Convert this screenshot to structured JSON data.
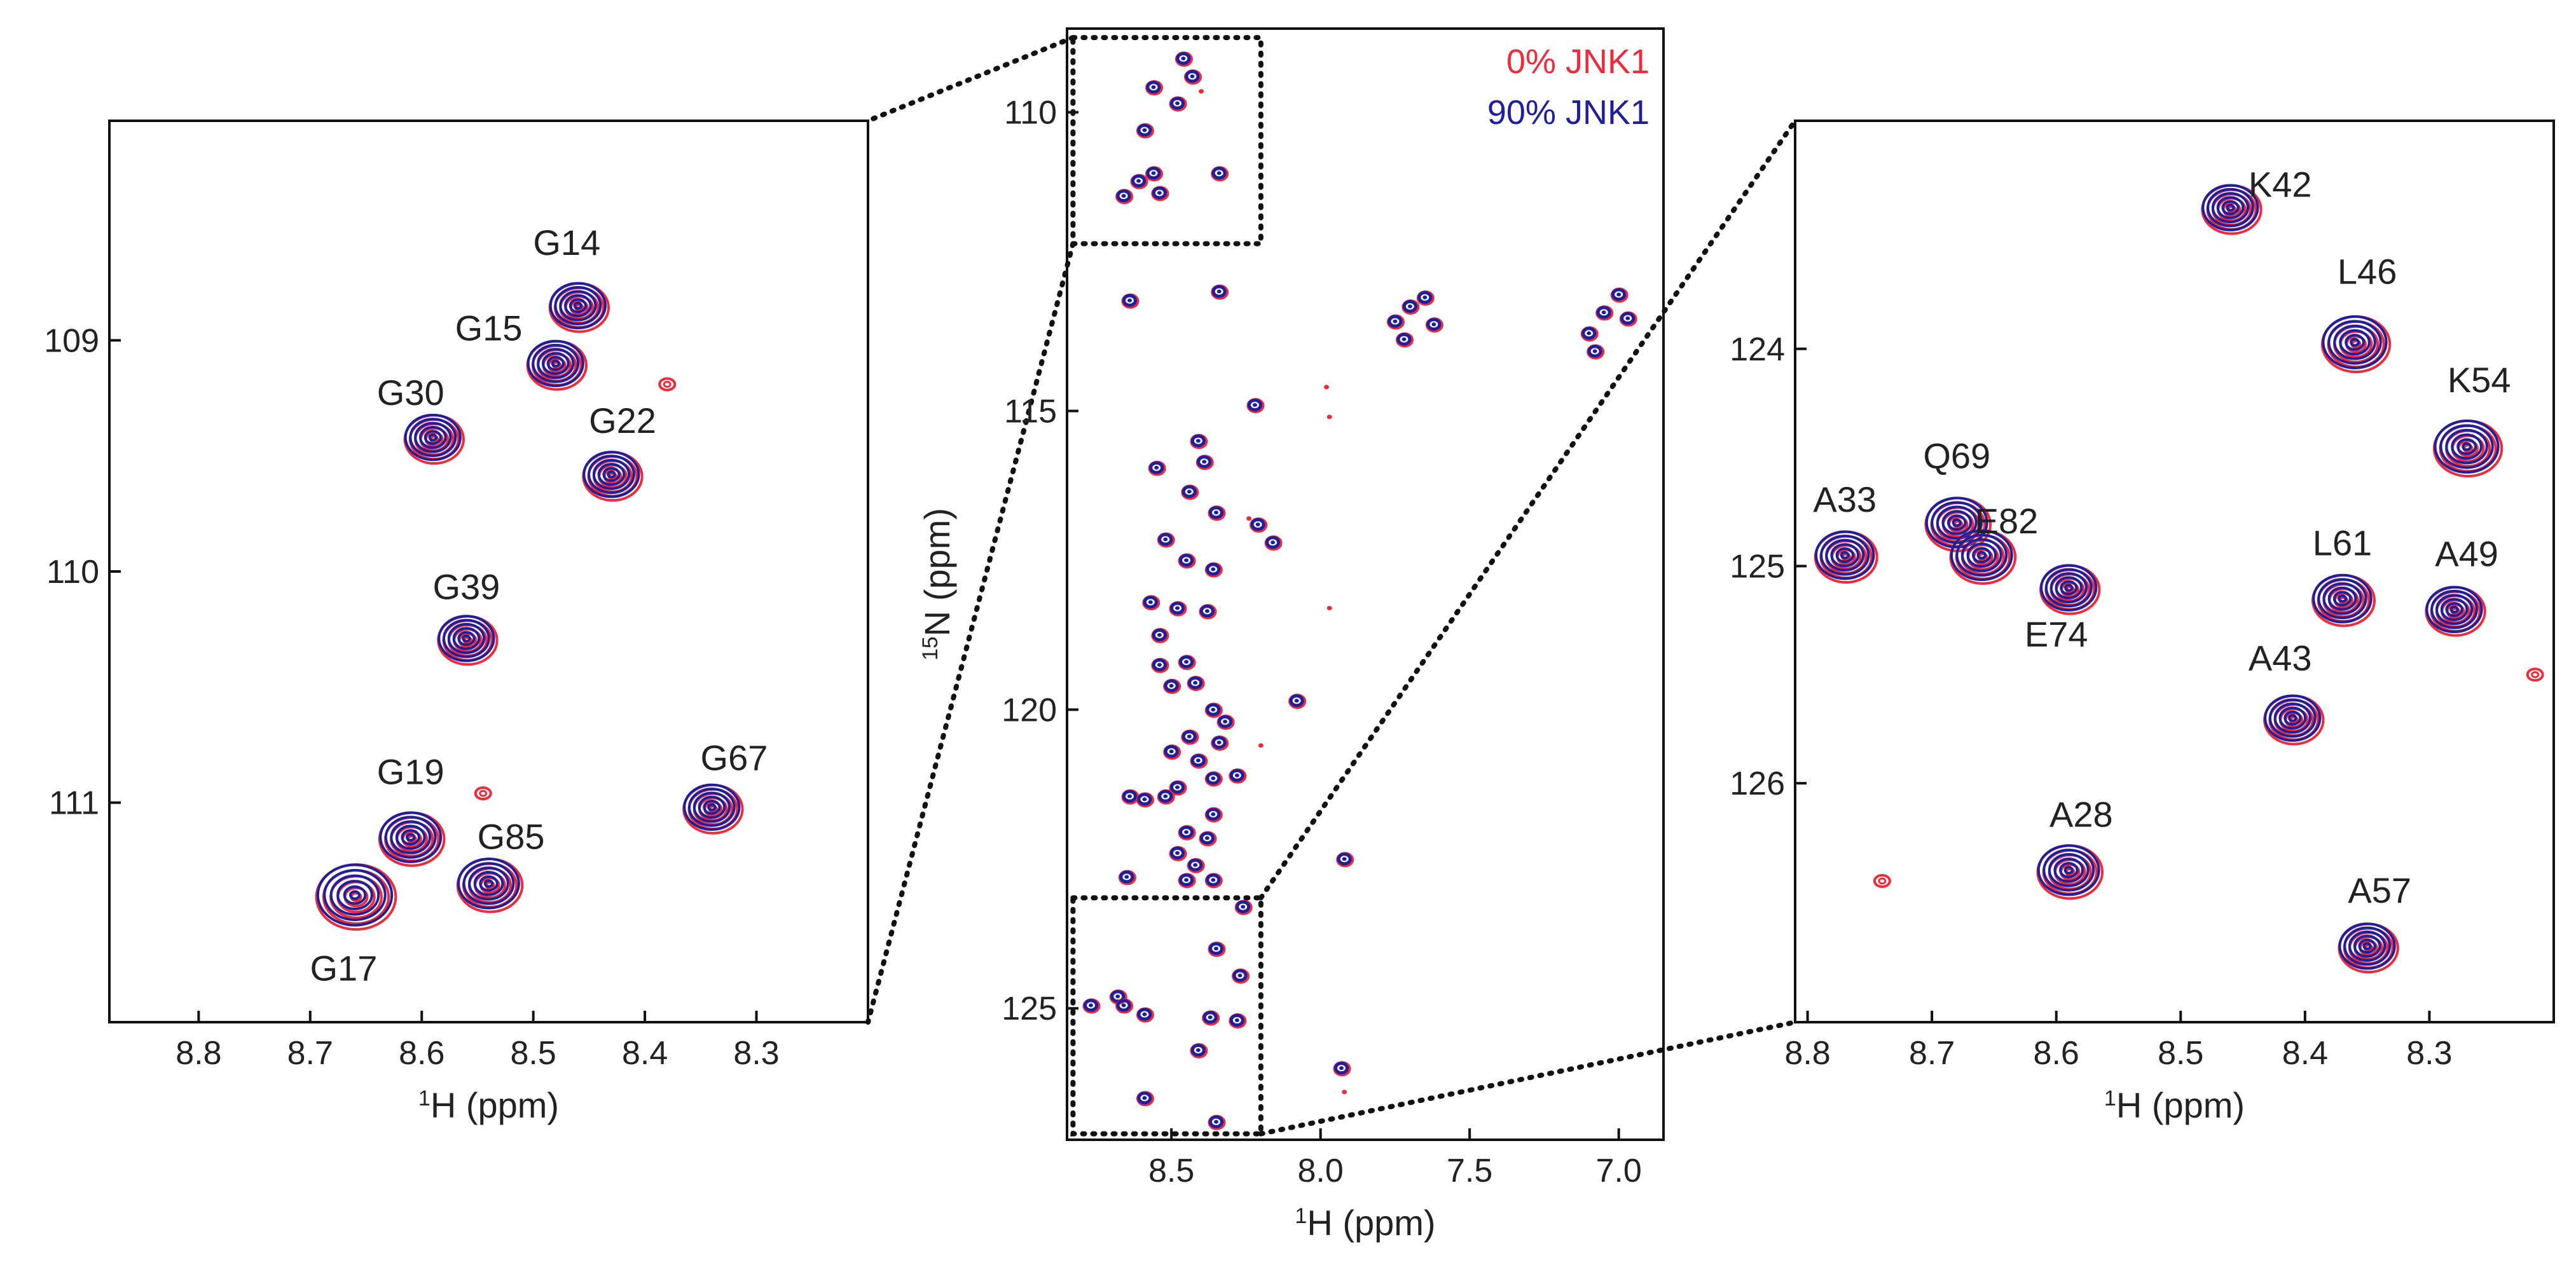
{
  "colors": {
    "ref": "#ee2a3b",
    "bound": "#1f1f99"
  },
  "legend": {
    "ref_label": "0% JNK1",
    "bound_label": "90% JNK1"
  },
  "chart_data": [
    {
      "type": "scatter",
      "panel": "left",
      "title": "",
      "xlabel_sup": "1",
      "xlabel_main": "H (ppm)",
      "ylabel": "",
      "xlim": [
        8.88,
        8.2
      ],
      "ylim": [
        108.05,
        111.95
      ],
      "xticks": [
        8.8,
        8.7,
        8.6,
        8.5,
        8.4,
        8.3
      ],
      "xtick_labels": [
        "8.8",
        "8.7",
        "8.6",
        "8.5",
        "8.4",
        "8.3"
      ],
      "yticks": [
        109,
        110,
        111
      ],
      "ytick_labels": [
        "109",
        "110",
        "111"
      ],
      "peaks": [
        {
          "label": "G14",
          "x": 8.46,
          "y": 108.85,
          "r": 1.0,
          "lx": 8.47,
          "ly": 108.63
        },
        {
          "label": "G15",
          "x": 8.48,
          "y": 109.1,
          "r": 1.0,
          "lx": 8.54,
          "ly": 109.0
        },
        {
          "label": "G30",
          "x": 8.59,
          "y": 109.42,
          "r": 1.0,
          "lx": 8.61,
          "ly": 109.28
        },
        {
          "label": "G22",
          "x": 8.43,
          "y": 109.58,
          "r": 1.0,
          "lx": 8.42,
          "ly": 109.4
        },
        {
          "label": "G39",
          "x": 8.56,
          "y": 110.29,
          "r": 1.0,
          "lx": 8.56,
          "ly": 110.12
        },
        {
          "label": "G19",
          "x": 8.61,
          "y": 111.15,
          "r": 1.1,
          "lx": 8.61,
          "ly": 110.92
        },
        {
          "label": "G85",
          "x": 8.54,
          "y": 111.35,
          "r": 1.1,
          "lx": 8.52,
          "ly": 111.2
        },
        {
          "label": "G67",
          "x": 8.34,
          "y": 111.02,
          "r": 1.0,
          "lx": 8.32,
          "ly": 110.86
        },
        {
          "label": "G17",
          "x": 8.66,
          "y": 111.4,
          "r": 1.35,
          "lx": 8.67,
          "ly": 111.77
        }
      ],
      "minor_peaks": [
        {
          "x": 8.38,
          "y": 109.19
        },
        {
          "x": 8.545,
          "y": 110.96
        }
      ]
    },
    {
      "type": "scatter",
      "panel": "middle",
      "title": "",
      "xlabel_sup": "1",
      "xlabel_main": "H (ppm)",
      "ylabel_sup": "15",
      "ylabel_main": "N (ppm)",
      "xlim": [
        8.85,
        6.85
      ],
      "ylim": [
        108.6,
        127.2
      ],
      "xticks": [
        8.5,
        8.0,
        7.5,
        7.0
      ],
      "xtick_labels": [
        "8.5",
        "8.0",
        "7.5",
        "7.0"
      ],
      "yticks": [
        110,
        115,
        120,
        125
      ],
      "ytick_labels": [
        "110",
        "115",
        "120",
        "125"
      ],
      "peaks": [
        {
          "x": 8.46,
          "y": 109.1
        },
        {
          "x": 8.43,
          "y": 109.4
        },
        {
          "x": 8.56,
          "y": 109.58
        },
        {
          "x": 8.48,
          "y": 109.85
        },
        {
          "x": 8.59,
          "y": 110.3
        },
        {
          "x": 8.56,
          "y": 111.02
        },
        {
          "x": 8.61,
          "y": 111.15
        },
        {
          "x": 8.54,
          "y": 111.35
        },
        {
          "x": 8.66,
          "y": 111.4
        },
        {
          "x": 8.34,
          "y": 111.02
        },
        {
          "x": 8.64,
          "y": 113.15
        },
        {
          "x": 8.34,
          "y": 113.0
        },
        {
          "x": 7.75,
          "y": 113.5
        },
        {
          "x": 7.7,
          "y": 113.25
        },
        {
          "x": 7.65,
          "y": 113.1
        },
        {
          "x": 7.72,
          "y": 113.8
        },
        {
          "x": 7.62,
          "y": 113.55
        },
        {
          "x": 7.1,
          "y": 113.7
        },
        {
          "x": 7.05,
          "y": 113.35
        },
        {
          "x": 7.0,
          "y": 113.05
        },
        {
          "x": 6.97,
          "y": 113.45
        },
        {
          "x": 7.08,
          "y": 114.0
        },
        {
          "x": 8.22,
          "y": 114.9
        },
        {
          "x": 8.41,
          "y": 115.5
        },
        {
          "x": 8.55,
          "y": 115.95
        },
        {
          "x": 8.39,
          "y": 115.85
        },
        {
          "x": 8.44,
          "y": 116.35
        },
        {
          "x": 8.35,
          "y": 116.7
        },
        {
          "x": 8.21,
          "y": 116.9
        },
        {
          "x": 8.52,
          "y": 117.15
        },
        {
          "x": 8.45,
          "y": 117.5
        },
        {
          "x": 8.16,
          "y": 117.2
        },
        {
          "x": 8.36,
          "y": 117.65
        },
        {
          "x": 8.57,
          "y": 118.2
        },
        {
          "x": 8.48,
          "y": 118.3
        },
        {
          "x": 8.38,
          "y": 118.35
        },
        {
          "x": 8.54,
          "y": 118.75
        },
        {
          "x": 8.45,
          "y": 119.2
        },
        {
          "x": 8.54,
          "y": 119.25
        },
        {
          "x": 8.5,
          "y": 119.6
        },
        {
          "x": 8.42,
          "y": 119.55
        },
        {
          "x": 8.08,
          "y": 119.85
        },
        {
          "x": 8.36,
          "y": 120.0
        },
        {
          "x": 8.32,
          "y": 120.2
        },
        {
          "x": 8.44,
          "y": 120.45
        },
        {
          "x": 8.34,
          "y": 120.55
        },
        {
          "x": 8.5,
          "y": 120.7
        },
        {
          "x": 8.41,
          "y": 120.85
        },
        {
          "x": 8.28,
          "y": 121.1
        },
        {
          "x": 8.36,
          "y": 121.15
        },
        {
          "x": 8.48,
          "y": 121.3
        },
        {
          "x": 8.64,
          "y": 121.45
        },
        {
          "x": 8.59,
          "y": 121.5
        },
        {
          "x": 8.52,
          "y": 121.45
        },
        {
          "x": 8.36,
          "y": 121.75
        },
        {
          "x": 8.45,
          "y": 122.05
        },
        {
          "x": 8.38,
          "y": 122.15
        },
        {
          "x": 8.48,
          "y": 122.4
        },
        {
          "x": 8.42,
          "y": 122.6
        },
        {
          "x": 8.36,
          "y": 122.85
        },
        {
          "x": 8.45,
          "y": 122.85
        },
        {
          "x": 8.65,
          "y": 122.8
        },
        {
          "x": 7.92,
          "y": 122.5
        },
        {
          "x": 8.26,
          "y": 123.3
        },
        {
          "x": 8.35,
          "y": 124.0
        },
        {
          "x": 8.27,
          "y": 124.45
        },
        {
          "x": 8.68,
          "y": 124.8
        },
        {
          "x": 8.77,
          "y": 124.95
        },
        {
          "x": 8.66,
          "y": 124.95
        },
        {
          "x": 8.59,
          "y": 125.1
        },
        {
          "x": 8.37,
          "y": 125.15
        },
        {
          "x": 8.28,
          "y": 125.2
        },
        {
          "x": 8.41,
          "y": 125.7
        },
        {
          "x": 8.59,
          "y": 126.5
        },
        {
          "x": 8.35,
          "y": 126.9
        },
        {
          "x": 7.93,
          "y": 126.0
        }
      ],
      "minor_peaks": [
        {
          "x": 8.4,
          "y": 109.65
        },
        {
          "x": 7.98,
          "y": 114.6
        },
        {
          "x": 7.97,
          "y": 115.1
        },
        {
          "x": 8.24,
          "y": 116.8
        },
        {
          "x": 7.97,
          "y": 118.3
        },
        {
          "x": 8.2,
          "y": 120.6
        },
        {
          "x": 7.92,
          "y": 126.4
        }
      ],
      "zoom_regions": [
        {
          "x0": 8.83,
          "x1": 8.2,
          "y0": 108.75,
          "y1": 112.2
        },
        {
          "x0": 8.83,
          "x1": 8.2,
          "y0": 123.15,
          "y1": 127.1
        }
      ]
    },
    {
      "type": "scatter",
      "panel": "right",
      "title": "",
      "xlabel_sup": "1",
      "xlabel_main": "H (ppm)",
      "ylabel": "",
      "xlim": [
        8.81,
        8.2
      ],
      "ylim": [
        122.95,
        127.1
      ],
      "xticks": [
        8.8,
        8.7,
        8.6,
        8.5,
        8.4,
        8.3
      ],
      "xtick_labels": [
        "8.8",
        "8.7",
        "8.6",
        "8.5",
        "8.4",
        "8.3"
      ],
      "yticks": [
        124,
        125,
        126
      ],
      "ytick_labels": [
        "124",
        "125",
        "126"
      ],
      "peaks": [
        {
          "label": "K42",
          "x": 8.46,
          "y": 123.35,
          "r": 1.0,
          "lx": 8.42,
          "ly": 123.3
        },
        {
          "label": "L46",
          "x": 8.36,
          "y": 123.97,
          "r": 1.15,
          "lx": 8.35,
          "ly": 123.7
        },
        {
          "label": "K54",
          "x": 8.27,
          "y": 124.45,
          "r": 1.15,
          "lx": 8.26,
          "ly": 124.2
        },
        {
          "label": "Q69",
          "x": 8.68,
          "y": 124.8,
          "r": 1.1,
          "lx": 8.68,
          "ly": 124.55
        },
        {
          "label": "A33",
          "x": 8.77,
          "y": 124.95,
          "r": 1.05,
          "lx": 8.77,
          "ly": 124.75
        },
        {
          "label": "E82",
          "x": 8.66,
          "y": 124.95,
          "r": 1.1,
          "lx": 8.64,
          "ly": 124.85
        },
        {
          "label": "E74",
          "x": 8.59,
          "y": 125.1,
          "r": 1.0,
          "lx": 8.6,
          "ly": 125.37
        },
        {
          "label": "L61",
          "x": 8.37,
          "y": 125.15,
          "r": 1.05,
          "lx": 8.37,
          "ly": 124.95
        },
        {
          "label": "A49",
          "x": 8.28,
          "y": 125.2,
          "r": 1.0,
          "lx": 8.27,
          "ly": 125.0
        },
        {
          "label": "A43",
          "x": 8.41,
          "y": 125.7,
          "r": 1.0,
          "lx": 8.42,
          "ly": 125.48
        },
        {
          "label": "A28",
          "x": 8.59,
          "y": 126.4,
          "r": 1.1,
          "lx": 8.58,
          "ly": 126.2
        },
        {
          "label": "A57",
          "x": 8.35,
          "y": 126.75,
          "r": 1.0,
          "lx": 8.34,
          "ly": 126.55
        }
      ],
      "minor_peaks": [
        {
          "x": 8.74,
          "y": 126.45
        },
        {
          "x": 8.215,
          "y": 125.5
        }
      ]
    }
  ]
}
